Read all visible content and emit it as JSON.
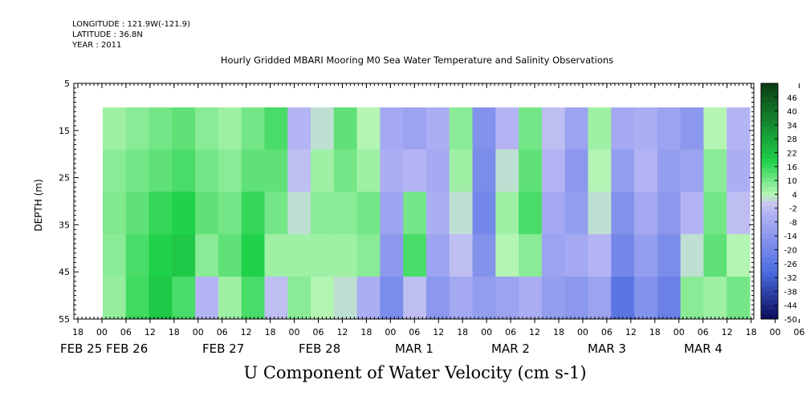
{
  "header": {
    "longitude": "LONGITUDE : 121.9W(-121.9)",
    "latitude": "LATITUDE : 36.8N",
    "year": "YEAR : 2011"
  },
  "chart_data": {
    "type": "heatmap",
    "title": "Hourly Gridded MBARI Mooring M0 Sea Water Temperature and Salinity Observations",
    "bottom_title": "U Component of Water Velocity (cm s-1)",
    "ylabel": "DEPTH (m)",
    "y_ticks": [
      "5",
      "15",
      "25",
      "35",
      "45",
      "55"
    ],
    "ylim": [
      55,
      5
    ],
    "data_depth_range": [
      10,
      55
    ],
    "x_hour_labels": [
      "18",
      "00",
      "06",
      "12",
      "18",
      "00",
      "06",
      "12",
      "18",
      "00",
      "06",
      "12",
      "18",
      "00",
      "06",
      "12",
      "18",
      "00",
      "06",
      "12",
      "18",
      "00",
      "06",
      "12",
      "18",
      "00",
      "06",
      "12",
      "18",
      "00",
      "06",
      "12",
      "18"
    ],
    "x_date_labels": [
      "FEB 25",
      "FEB 26",
      "FEB 27",
      "FEB 28",
      "MAR  1",
      "MAR  2",
      "MAR  3",
      "MAR  4"
    ],
    "colorbar_labels": [
      "46",
      "40",
      "34",
      "28",
      "22",
      "16",
      "10",
      "4",
      "-2",
      "-8",
      "-14",
      "-20",
      "-26",
      "-32",
      "-38",
      "-44",
      "-50"
    ],
    "colorbar_range": [
      -50,
      52
    ],
    "colors": {
      "strong_positive": "#0a3d14",
      "positive": "#20d24a",
      "weak_positive": "#b4f5b4",
      "weak_negative": "#b4b4f5",
      "negative": "#4a6be0",
      "strong_negative": "#0a0a5a"
    },
    "u_profile_cm_s": [
      {
        "x": 0,
        "values": [
          6,
          8,
          9,
          8,
          7
        ]
      },
      {
        "x": 1,
        "values": [
          8,
          10,
          12,
          14,
          15
        ]
      },
      {
        "x": 2,
        "values": [
          10,
          12,
          16,
          18,
          20
        ]
      },
      {
        "x": 3,
        "values": [
          12,
          14,
          18,
          20,
          14
        ]
      },
      {
        "x": 4,
        "values": [
          8,
          10,
          12,
          8,
          -4
        ]
      },
      {
        "x": 5,
        "values": [
          6,
          8,
          10,
          12,
          6
        ]
      },
      {
        "x": 6,
        "values": [
          10,
          12,
          16,
          18,
          14
        ]
      },
      {
        "x": 7,
        "values": [
          14,
          12,
          10,
          6,
          -2
        ]
      },
      {
        "x": 8,
        "values": [
          -4,
          -2,
          2,
          6,
          8
        ]
      },
      {
        "x": 9,
        "values": [
          2,
          6,
          8,
          6,
          4
        ]
      },
      {
        "x": 10,
        "values": [
          12,
          10,
          8,
          6,
          2
        ]
      },
      {
        "x": 11,
        "values": [
          4,
          6,
          10,
          8,
          -6
        ]
      },
      {
        "x": 12,
        "values": [
          -8,
          -6,
          -10,
          -14,
          -18
        ]
      },
      {
        "x": 13,
        "values": [
          -10,
          -4,
          10,
          14,
          -2
        ]
      },
      {
        "x": 14,
        "values": [
          -6,
          -8,
          -6,
          -10,
          -14
        ]
      },
      {
        "x": 15,
        "values": [
          8,
          6,
          2,
          -2,
          -8
        ]
      },
      {
        "x": 16,
        "values": [
          -16,
          -18,
          -20,
          -16,
          -12
        ]
      },
      {
        "x": 17,
        "values": [
          -4,
          2,
          6,
          4,
          -10
        ]
      },
      {
        "x": 18,
        "values": [
          10,
          12,
          14,
          8,
          -6
        ]
      },
      {
        "x": 19,
        "values": [
          -2,
          -4,
          -8,
          -10,
          -12
        ]
      },
      {
        "x": 20,
        "values": [
          -10,
          -14,
          -12,
          -8,
          -14
        ]
      },
      {
        "x": 21,
        "values": [
          6,
          4,
          2,
          -4,
          -10
        ]
      },
      {
        "x": 22,
        "values": [
          -8,
          -12,
          -16,
          -20,
          -26
        ]
      },
      {
        "x": 23,
        "values": [
          -6,
          -4,
          -8,
          -12,
          -16
        ]
      },
      {
        "x": 24,
        "values": [
          -10,
          -12,
          -14,
          -18,
          -22
        ]
      },
      {
        "x": 25,
        "values": [
          -14,
          -10,
          -4,
          2,
          8
        ]
      },
      {
        "x": 26,
        "values": [
          4,
          8,
          10,
          12,
          6
        ]
      },
      {
        "x": 27,
        "values": [
          -4,
          -6,
          -2,
          4,
          10
        ]
      }
    ]
  }
}
